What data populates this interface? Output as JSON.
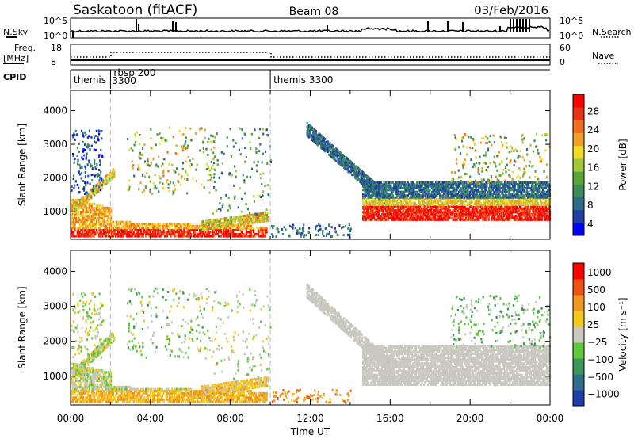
{
  "header": {
    "station": "Saskatoon (fitACF)",
    "beam": "Beam 08",
    "date": "03/Feb/2016"
  },
  "noise_panel": {
    "left_label": "N.Sky",
    "right_label": "N.Search",
    "left_ticks": [
      "10^5",
      "10^0"
    ],
    "right_ticks": [
      "10^5",
      "10^0"
    ]
  },
  "freq_panel": {
    "left_label_1": "Freq.",
    "left_label_2": "[MHz]",
    "right_label": "Nave",
    "left_ticks": [
      "18",
      "8"
    ],
    "right_ticks": [
      "60",
      "0"
    ]
  },
  "cpid": {
    "label": "CPID",
    "segments": [
      {
        "name": "themis",
        "start_hour": 0.0
      },
      {
        "name": "rbsp 200\n3300",
        "start_hour": 2.0
      },
      {
        "name": "themis 3300",
        "start_hour": 10.0
      }
    ]
  },
  "chart_data": [
    {
      "type": "heatmap",
      "title": "Power",
      "ylabel": "Slant Range [km]",
      "xlabel": "",
      "xlim": [
        0,
        24
      ],
      "ylim": [
        180,
        4600
      ],
      "yticks": [
        "4000",
        "3000",
        "2000",
        "1000"
      ],
      "colorbar_label": "Power [dB]",
      "colorbar_ticks": [
        "28",
        "24",
        "20",
        "16",
        "12",
        "8",
        "4"
      ],
      "colors": [
        "#0000ff",
        "#2040a0",
        "#2e6b8a",
        "#3c8c5a",
        "#5aa53a",
        "#a0c83c",
        "#f0dc28",
        "#f0a028",
        "#f06e1e",
        "#e83214",
        "#ff0000"
      ]
    },
    {
      "type": "heatmap",
      "title": "Velocity",
      "ylabel": "Slant Range [km]",
      "xlabel": "Time UT",
      "xlim": [
        0,
        24
      ],
      "ylim": [
        180,
        4600
      ],
      "xticks": [
        "00:00",
        "04:00",
        "08:00",
        "12:00",
        "16:00",
        "20:00",
        "00:00"
      ],
      "yticks": [
        "4000",
        "3000",
        "2000",
        "1000"
      ],
      "colorbar_label": "Velocity [m s⁻¹]",
      "colorbar_ticks": [
        "1000",
        "500",
        "100",
        "25",
        "−25",
        "−100",
        "−500",
        "−1000"
      ],
      "colors": [
        "#1e3caa",
        "#2e6e8c",
        "#3c965a",
        "#5fc83c",
        "#c8c8c0",
        "#f0c81e",
        "#f0961e",
        "#f05014",
        "#ff0000"
      ]
    }
  ]
}
